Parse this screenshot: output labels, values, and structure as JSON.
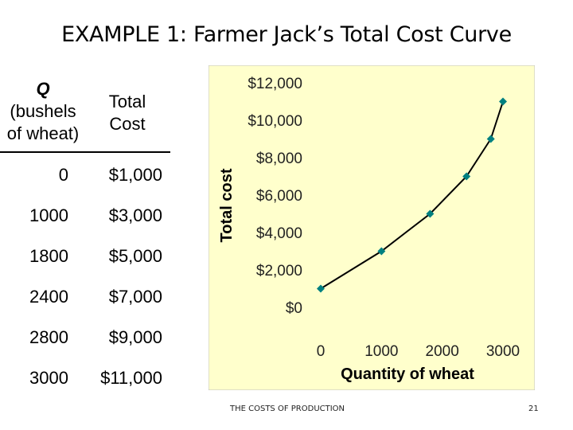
{
  "slide": {
    "title": "EXAMPLE 1:  Farmer Jack’s Total Cost Curve",
    "footer_text": "THE COSTS OF PRODUCTION",
    "page_number": "21"
  },
  "table": {
    "q_header_letter": "Q",
    "q_header_line2": "(bushels",
    "q_header_line3": "of wheat)",
    "tc_header_line1": "Total",
    "tc_header_line2": "Cost",
    "rows": [
      {
        "q": "0",
        "cost": "$1,000"
      },
      {
        "q": "1000",
        "cost": "$3,000"
      },
      {
        "q": "1800",
        "cost": "$5,000"
      },
      {
        "q": "2400",
        "cost": "$7,000"
      },
      {
        "q": "2800",
        "cost": "$9,000"
      },
      {
        "q": "3000",
        "cost": "$11,000"
      }
    ]
  },
  "chart_data": {
    "type": "line",
    "title": "",
    "xlabel": "Quantity of wheat",
    "ylabel": "Total cost",
    "x": [
      0,
      1000,
      1800,
      2400,
      2800,
      3000
    ],
    "series": [
      {
        "values": [
          1000,
          3000,
          5000,
          7000,
          9000,
          11000
        ]
      }
    ],
    "xlim": [
      0,
      3000
    ],
    "ylim": [
      0,
      12000
    ],
    "x_ticks": [
      0,
      1000,
      2000,
      3000
    ],
    "x_tick_labels": [
      "0",
      "1000",
      "2000",
      "3000"
    ],
    "y_ticks": [
      0,
      2000,
      4000,
      6000,
      8000,
      10000,
      12000
    ],
    "y_tick_labels": [
      "$0",
      "$2,000",
      "$4,000",
      "$6,000",
      "$8,000",
      "$10,000",
      "$12,000"
    ],
    "grid": false,
    "background_color": "#FFFFCC",
    "frame_color": "#BFBFBF",
    "line_color": "#000000",
    "marker_color": "#008080",
    "marker_shape": "diamond"
  }
}
